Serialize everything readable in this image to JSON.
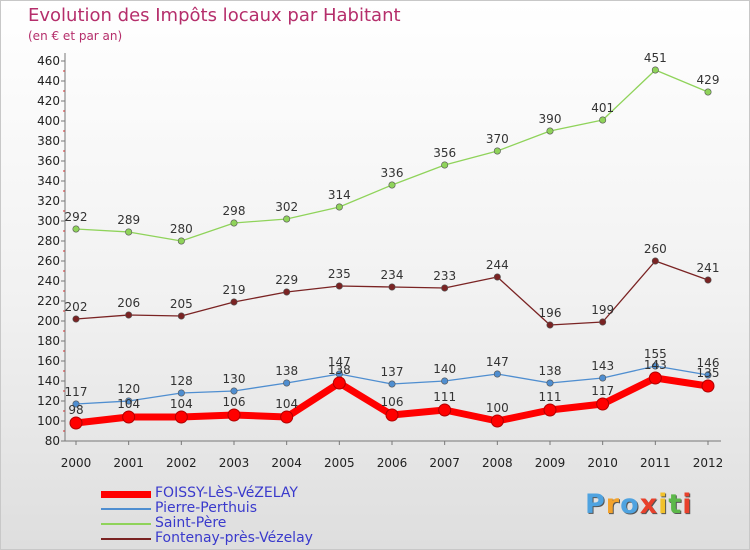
{
  "chart_data": {
    "type": "line",
    "title": "Evolution des Impôts locaux par Habitant",
    "subtitle": "(en € et par an)",
    "x": [
      "2000",
      "2001",
      "2002",
      "2003",
      "2004",
      "2005",
      "2006",
      "2007",
      "2008",
      "2009",
      "2010",
      "2011",
      "2012"
    ],
    "ylim": [
      80,
      460
    ],
    "yticks": [
      80,
      100,
      120,
      140,
      160,
      180,
      200,
      220,
      240,
      260,
      280,
      300,
      320,
      340,
      360,
      380,
      400,
      420,
      440,
      460
    ],
    "grid": false,
    "series": [
      {
        "name": "FOISSY-LèS-VéZELAY",
        "color": "#ff0000",
        "emphasis": true,
        "values": [
          98,
          104,
          104,
          106,
          104,
          138,
          106,
          111,
          100,
          111,
          117,
          143,
          135
        ]
      },
      {
        "name": "Pierre-Perthuis",
        "color": "#4f8ed0",
        "emphasis": false,
        "values": [
          117,
          120,
          128,
          130,
          138,
          147,
          137,
          140,
          147,
          138,
          143,
          155,
          146
        ]
      },
      {
        "name": "Saint-Père",
        "color": "#8fd35a",
        "emphasis": false,
        "values": [
          292,
          289,
          280,
          298,
          302,
          314,
          336,
          356,
          370,
          390,
          401,
          451,
          429
        ]
      },
      {
        "name": "Fontenay-près-Vézelay",
        "color": "#7a2323",
        "emphasis": false,
        "values": [
          202,
          206,
          205,
          219,
          229,
          235,
          234,
          233,
          244,
          196,
          199,
          260,
          241
        ]
      }
    ]
  },
  "logo": {
    "letters": [
      "P",
      "r",
      "o",
      "x",
      "i",
      "t",
      "i"
    ],
    "colors": [
      "#4fa3e0",
      "#f2a22c",
      "#4fa3e0",
      "#e8412c",
      "#f2c22c",
      "#5cb84a",
      "#e8412c"
    ]
  }
}
